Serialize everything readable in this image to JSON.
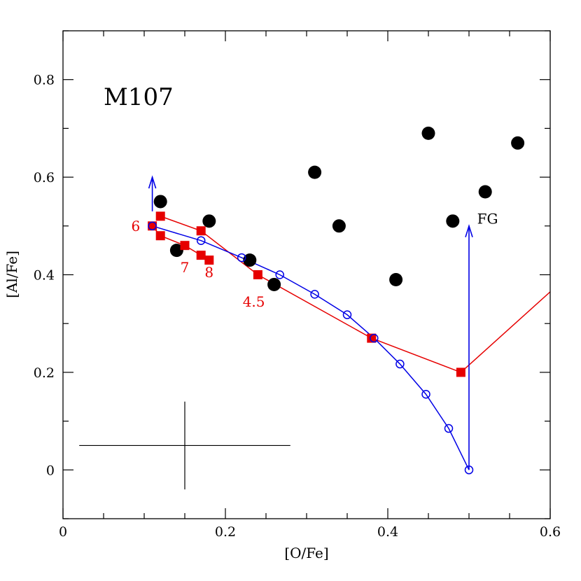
{
  "chart_data": {
    "type": "scatter",
    "title": "M107",
    "xlabel": "[O/Fe]",
    "ylabel": "[Al/Fe]",
    "xlim": [
      0,
      0.6
    ],
    "ylim": [
      -0.1,
      0.9
    ],
    "x_ticks": [
      0,
      0.2,
      0.4,
      0.6
    ],
    "x_tick_labels": [
      "0",
      "0.2",
      "0.4",
      "0.6"
    ],
    "y_ticks": [
      0,
      0.2,
      0.4,
      0.6,
      0.8
    ],
    "y_tick_labels": [
      "0",
      "0.2",
      "0.4",
      "0.6",
      "0.8"
    ],
    "x_minor_step": 0.05,
    "y_minor_step": 0.1,
    "grid": false,
    "series": [
      {
        "kind": "observed-stars",
        "marker": "filled-circle",
        "color": "#000000",
        "points": [
          [
            0.12,
            0.55
          ],
          [
            0.14,
            0.45
          ],
          [
            0.18,
            0.51
          ],
          [
            0.23,
            0.43
          ],
          [
            0.26,
            0.38
          ],
          [
            0.31,
            0.61
          ],
          [
            0.34,
            0.5
          ],
          [
            0.41,
            0.39
          ],
          [
            0.45,
            0.69
          ],
          [
            0.48,
            0.51
          ],
          [
            0.52,
            0.57
          ],
          [
            0.56,
            0.67
          ]
        ]
      },
      {
        "kind": "model-red",
        "marker": "filled-square",
        "color": "#e60000",
        "points": [
          [
            0.11,
            0.5
          ],
          [
            0.12,
            0.52
          ],
          [
            0.12,
            0.48
          ],
          [
            0.15,
            0.46
          ],
          [
            0.17,
            0.49
          ],
          [
            0.17,
            0.44
          ],
          [
            0.18,
            0.43
          ],
          [
            0.24,
            0.4
          ],
          [
            0.38,
            0.27
          ],
          [
            0.49,
            0.2
          ]
        ],
        "lines": [
          [
            [
              0.11,
              0.5
            ],
            [
              0.12,
              0.48
            ],
            [
              0.15,
              0.46
            ],
            [
              0.17,
              0.44
            ],
            [
              0.18,
              0.43
            ]
          ],
          [
            [
              0.12,
              0.52
            ],
            [
              0.17,
              0.49
            ],
            [
              0.24,
              0.4
            ],
            [
              0.38,
              0.27
            ],
            [
              0.49,
              0.2
            ],
            [
              0.6,
              0.365
            ]
          ]
        ]
      },
      {
        "kind": "dilution-blue",
        "marker": "open-circle",
        "color": "#0000e6",
        "points": [
          [
            0.11,
            0.5
          ],
          [
            0.17,
            0.47
          ],
          [
            0.22,
            0.435
          ],
          [
            0.267,
            0.4
          ],
          [
            0.31,
            0.36
          ],
          [
            0.35,
            0.318
          ],
          [
            0.383,
            0.27
          ],
          [
            0.415,
            0.217
          ],
          [
            0.447,
            0.155
          ],
          [
            0.475,
            0.085
          ],
          [
            0.5,
            0.0
          ]
        ]
      }
    ],
    "arrows": [
      {
        "from": [
          0.11,
          0.53
        ],
        "to": [
          0.11,
          0.6
        ],
        "color": "#0000e6"
      },
      {
        "from": [
          0.5,
          0.0
        ],
        "to": [
          0.5,
          0.5
        ],
        "color": "#0000e6"
      }
    ],
    "error_bar": {
      "x": 0.15,
      "y": 0.05,
      "x_err": 0.13,
      "y_err": 0.09,
      "color": "#000000"
    },
    "annotations": [
      {
        "text": "6",
        "x": 0.095,
        "y": 0.49,
        "anchor": "end",
        "class": "model-label"
      },
      {
        "text": "7",
        "x": 0.15,
        "y": 0.405,
        "anchor": "middle",
        "class": "model-label"
      },
      {
        "text": "8",
        "x": 0.18,
        "y": 0.395,
        "anchor": "middle",
        "class": "model-label"
      },
      {
        "text": "4.5",
        "x": 0.235,
        "y": 0.335,
        "anchor": "middle",
        "class": "model-label"
      },
      {
        "text": "FG",
        "x": 0.51,
        "y": 0.505,
        "anchor": "start",
        "class": "fg-label"
      }
    ]
  }
}
